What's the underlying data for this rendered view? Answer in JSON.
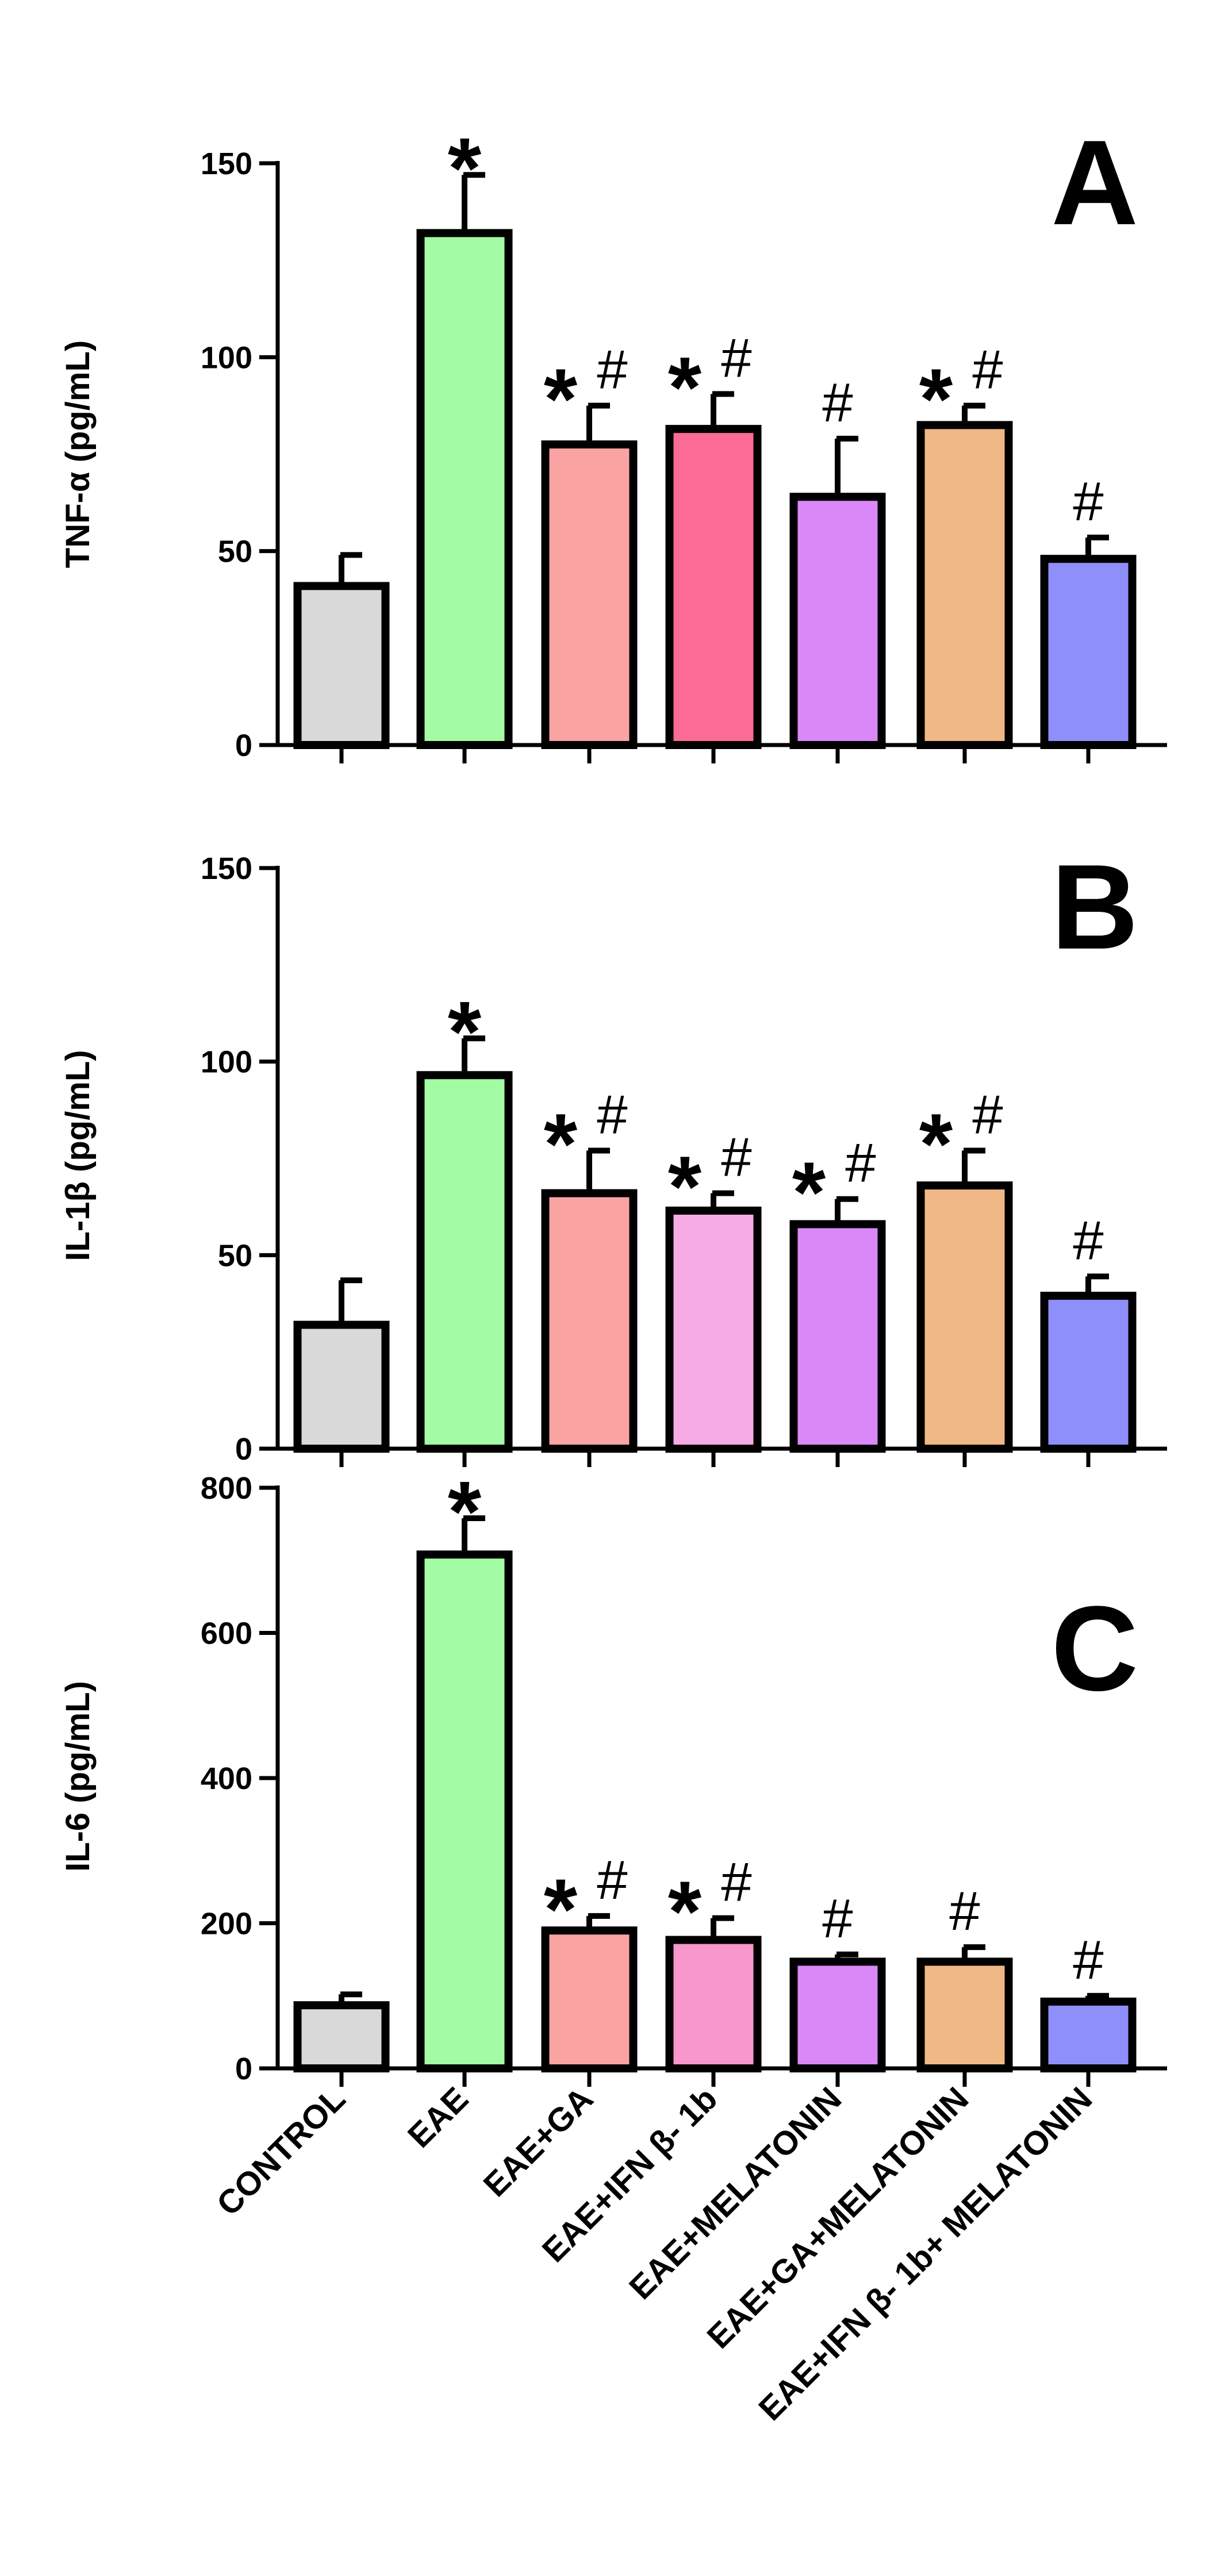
{
  "chart_data": [
    {
      "type": "bar",
      "panel": "A",
      "ylabel": "TNF-α  (pg/mL)",
      "ylim": [
        0,
        150
      ],
      "yticks": [
        0,
        50,
        100,
        150
      ],
      "values": [
        41,
        132,
        77.5,
        81.5,
        64,
        82.5,
        48
      ],
      "errors": [
        8,
        15,
        10,
        9,
        15,
        5,
        5.5
      ],
      "stars": [
        "",
        "*",
        "*",
        "*",
        "",
        "*",
        ""
      ],
      "hashes": [
        "",
        "",
        "#",
        "#",
        "#",
        "#",
        "#"
      ],
      "colors": [
        "#d9d9d9",
        "#a3fca3",
        "#fba3a3",
        "#fb6b96",
        "#da88f8",
        "#f0b884",
        "#8f8ffb"
      ]
    },
    {
      "type": "bar",
      "panel": "B",
      "ylabel": "IL-1β  (pg/mL)",
      "ylim": [
        0,
        150
      ],
      "yticks": [
        0,
        50,
        100,
        150
      ],
      "values": [
        32,
        96.5,
        66,
        61.5,
        58,
        68,
        39.5
      ],
      "errors": [
        11.5,
        9.5,
        11,
        4.5,
        6.5,
        9,
        5
      ],
      "stars": [
        "",
        "*",
        "*",
        "*",
        "*",
        "*",
        ""
      ],
      "hashes": [
        "",
        "",
        "#",
        "#",
        "#",
        "#",
        "#"
      ],
      "colors": [
        "#d9d9d9",
        "#a3fca3",
        "#fba3a3",
        "#f6abe6",
        "#da88f8",
        "#f0b884",
        "#8f8ffb"
      ]
    },
    {
      "type": "bar",
      "panel": "C",
      "ylabel": "IL-6  (pg/mL)",
      "ylim": [
        0,
        800
      ],
      "yticks": [
        0,
        200,
        400,
        600,
        800
      ],
      "values": [
        87,
        708,
        190,
        177,
        147,
        147,
        92
      ],
      "errors": [
        15,
        50,
        20,
        30,
        10,
        20,
        8
      ],
      "stars": [
        "",
        "*",
        "*",
        "*",
        "",
        "",
        ""
      ],
      "hashes": [
        "",
        "",
        "#",
        "#",
        "#",
        "#",
        "#"
      ],
      "colors": [
        "#d9d9d9",
        "#a3fca3",
        "#fba3a3",
        "#f897cc",
        "#da88f8",
        "#f0b884",
        "#8f8ffb"
      ]
    }
  ],
  "categories": [
    "CONTROL",
    "EAE",
    "EAE+GA",
    "EAE+IFN β- 1b",
    "EAE+MELATONIN",
    "EAE+GA+MELATONIN",
    "EAE+IFN β- 1b+ MELATONIN"
  ]
}
